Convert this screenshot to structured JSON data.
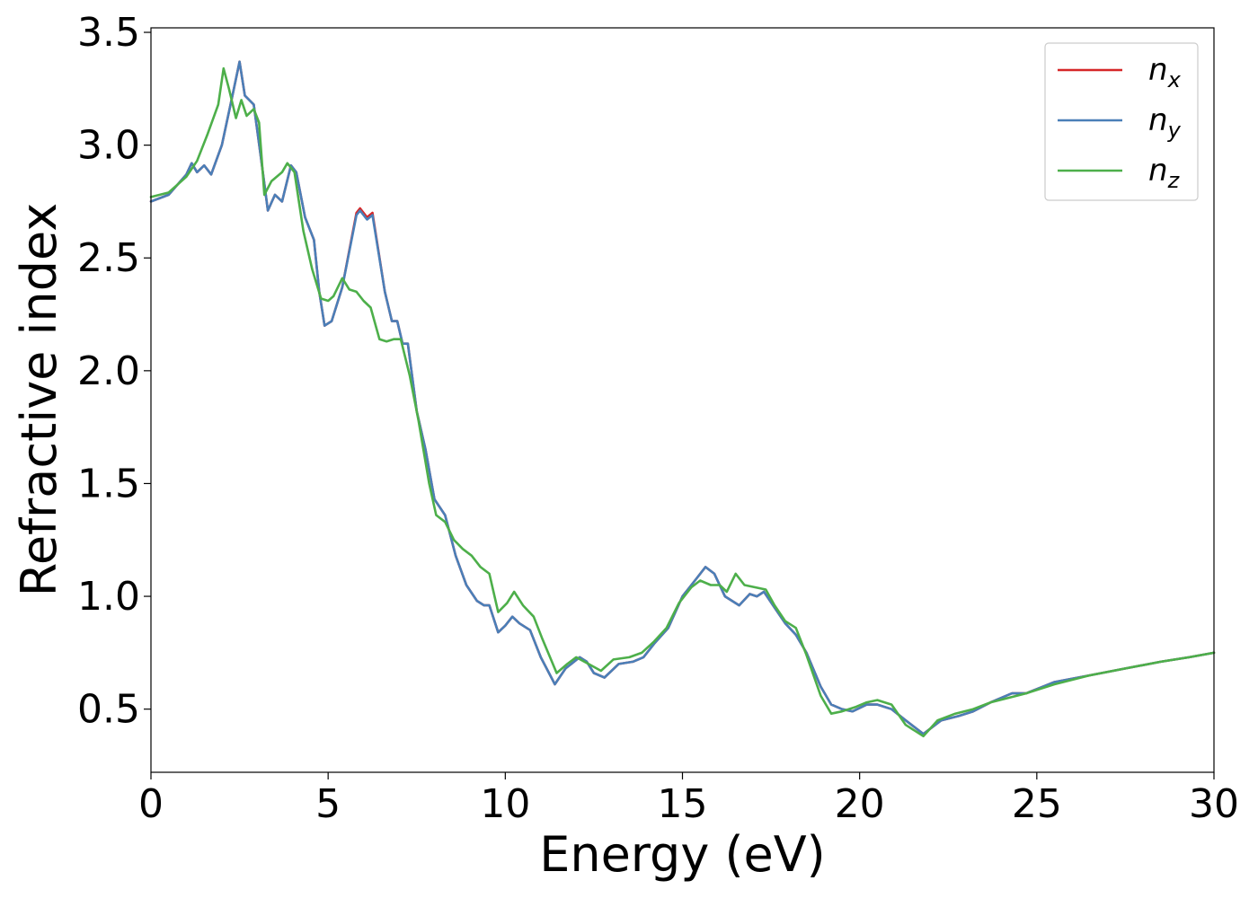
{
  "chart_data": {
    "type": "line",
    "title": "",
    "xlabel": "Energy (eV)",
    "ylabel": "Refractive index",
    "xlim": [
      0,
      30
    ],
    "ylim": [
      0.22,
      3.52
    ],
    "xticks": [
      0,
      5,
      10,
      15,
      20,
      25,
      30
    ],
    "xtick_labels": [
      "0",
      "5",
      "10",
      "15",
      "20",
      "25",
      "30"
    ],
    "yticks": [
      0.5,
      1.0,
      1.5,
      2.0,
      2.5,
      3.0,
      3.5
    ],
    "ytick_labels": [
      "0.5",
      "1.0",
      "1.5",
      "2.0",
      "2.5",
      "3.0",
      "3.5"
    ],
    "grid": false,
    "legend_position": "top-right",
    "series": [
      {
        "name": "n_x",
        "legend_base": "n",
        "legend_sub": "x",
        "color": "#d62728",
        "points": [
          [
            0,
            2.75
          ],
          [
            0.5,
            2.78
          ],
          [
            1.0,
            2.87
          ],
          [
            1.15,
            2.92
          ],
          [
            1.3,
            2.88
          ],
          [
            1.5,
            2.91
          ],
          [
            1.7,
            2.87
          ],
          [
            2.0,
            3.0
          ],
          [
            2.3,
            3.22
          ],
          [
            2.5,
            3.37
          ],
          [
            2.65,
            3.22
          ],
          [
            2.9,
            3.18
          ],
          [
            3.1,
            2.95
          ],
          [
            3.3,
            2.71
          ],
          [
            3.5,
            2.78
          ],
          [
            3.7,
            2.75
          ],
          [
            3.95,
            2.91
          ],
          [
            4.1,
            2.88
          ],
          [
            4.35,
            2.68
          ],
          [
            4.6,
            2.58
          ],
          [
            4.75,
            2.35
          ],
          [
            4.9,
            2.2
          ],
          [
            5.1,
            2.22
          ],
          [
            5.4,
            2.37
          ],
          [
            5.8,
            2.7
          ],
          [
            5.9,
            2.72
          ],
          [
            6.1,
            2.68
          ],
          [
            6.25,
            2.7
          ],
          [
            6.6,
            2.35
          ],
          [
            6.8,
            2.22
          ],
          [
            6.95,
            2.22
          ],
          [
            7.1,
            2.12
          ],
          [
            7.25,
            2.12
          ],
          [
            7.5,
            1.82
          ],
          [
            7.75,
            1.65
          ],
          [
            8.0,
            1.43
          ],
          [
            8.3,
            1.36
          ],
          [
            8.6,
            1.18
          ],
          [
            8.9,
            1.05
          ],
          [
            9.2,
            0.98
          ],
          [
            9.4,
            0.96
          ],
          [
            9.55,
            0.96
          ],
          [
            9.8,
            0.84
          ],
          [
            10.0,
            0.87
          ],
          [
            10.2,
            0.91
          ],
          [
            10.4,
            0.88
          ],
          [
            10.7,
            0.85
          ],
          [
            11.0,
            0.73
          ],
          [
            11.4,
            0.61
          ],
          [
            11.7,
            0.68
          ],
          [
            12.1,
            0.73
          ],
          [
            12.3,
            0.71
          ],
          [
            12.5,
            0.66
          ],
          [
            12.8,
            0.64
          ],
          [
            13.2,
            0.7
          ],
          [
            13.6,
            0.71
          ],
          [
            13.9,
            0.73
          ],
          [
            14.2,
            0.79
          ],
          [
            14.6,
            0.86
          ],
          [
            15.0,
            1.0
          ],
          [
            15.4,
            1.08
          ],
          [
            15.65,
            1.13
          ],
          [
            15.9,
            1.1
          ],
          [
            16.2,
            1.0
          ],
          [
            16.4,
            0.98
          ],
          [
            16.6,
            0.96
          ],
          [
            16.9,
            1.01
          ],
          [
            17.1,
            1.0
          ],
          [
            17.3,
            1.02
          ],
          [
            17.6,
            0.95
          ],
          [
            17.9,
            0.88
          ],
          [
            18.2,
            0.83
          ],
          [
            18.5,
            0.75
          ],
          [
            18.9,
            0.6
          ],
          [
            19.2,
            0.52
          ],
          [
            19.5,
            0.5
          ],
          [
            19.8,
            0.49
          ],
          [
            20.2,
            0.52
          ],
          [
            20.5,
            0.52
          ],
          [
            20.9,
            0.5
          ],
          [
            21.3,
            0.45
          ],
          [
            21.8,
            0.39
          ],
          [
            22.3,
            0.45
          ],
          [
            22.8,
            0.47
          ],
          [
            23.2,
            0.49
          ],
          [
            23.7,
            0.53
          ],
          [
            24.3,
            0.57
          ],
          [
            24.7,
            0.57
          ],
          [
            25.5,
            0.62
          ],
          [
            26.5,
            0.65
          ],
          [
            27.5,
            0.68
          ],
          [
            28.5,
            0.71
          ],
          [
            29.3,
            0.73
          ],
          [
            30.0,
            0.75
          ]
        ]
      },
      {
        "name": "n_y",
        "legend_base": "n",
        "legend_sub": "y",
        "color": "#4a7fb8",
        "points": [
          [
            0,
            2.75
          ],
          [
            0.5,
            2.78
          ],
          [
            1.0,
            2.87
          ],
          [
            1.15,
            2.92
          ],
          [
            1.3,
            2.88
          ],
          [
            1.5,
            2.91
          ],
          [
            1.7,
            2.87
          ],
          [
            2.0,
            3.0
          ],
          [
            2.3,
            3.22
          ],
          [
            2.5,
            3.37
          ],
          [
            2.65,
            3.22
          ],
          [
            2.9,
            3.18
          ],
          [
            3.1,
            2.95
          ],
          [
            3.3,
            2.71
          ],
          [
            3.5,
            2.78
          ],
          [
            3.7,
            2.75
          ],
          [
            3.95,
            2.91
          ],
          [
            4.1,
            2.88
          ],
          [
            4.35,
            2.68
          ],
          [
            4.6,
            2.58
          ],
          [
            4.75,
            2.35
          ],
          [
            4.9,
            2.2
          ],
          [
            5.1,
            2.22
          ],
          [
            5.4,
            2.37
          ],
          [
            5.8,
            2.69
          ],
          [
            5.9,
            2.71
          ],
          [
            6.1,
            2.67
          ],
          [
            6.25,
            2.69
          ],
          [
            6.6,
            2.35
          ],
          [
            6.8,
            2.22
          ],
          [
            6.95,
            2.22
          ],
          [
            7.1,
            2.12
          ],
          [
            7.25,
            2.12
          ],
          [
            7.5,
            1.82
          ],
          [
            7.75,
            1.65
          ],
          [
            8.0,
            1.43
          ],
          [
            8.3,
            1.36
          ],
          [
            8.6,
            1.18
          ],
          [
            8.9,
            1.05
          ],
          [
            9.2,
            0.98
          ],
          [
            9.4,
            0.96
          ],
          [
            9.55,
            0.96
          ],
          [
            9.8,
            0.84
          ],
          [
            10.0,
            0.87
          ],
          [
            10.2,
            0.91
          ],
          [
            10.4,
            0.88
          ],
          [
            10.7,
            0.85
          ],
          [
            11.0,
            0.73
          ],
          [
            11.4,
            0.61
          ],
          [
            11.7,
            0.68
          ],
          [
            12.1,
            0.73
          ],
          [
            12.3,
            0.71
          ],
          [
            12.5,
            0.66
          ],
          [
            12.8,
            0.64
          ],
          [
            13.2,
            0.7
          ],
          [
            13.6,
            0.71
          ],
          [
            13.9,
            0.73
          ],
          [
            14.2,
            0.79
          ],
          [
            14.6,
            0.86
          ],
          [
            15.0,
            1.0
          ],
          [
            15.4,
            1.08
          ],
          [
            15.65,
            1.13
          ],
          [
            15.9,
            1.1
          ],
          [
            16.2,
            1.0
          ],
          [
            16.4,
            0.98
          ],
          [
            16.6,
            0.96
          ],
          [
            16.9,
            1.01
          ],
          [
            17.1,
            1.0
          ],
          [
            17.3,
            1.02
          ],
          [
            17.6,
            0.95
          ],
          [
            17.9,
            0.88
          ],
          [
            18.2,
            0.83
          ],
          [
            18.5,
            0.75
          ],
          [
            18.9,
            0.6
          ],
          [
            19.2,
            0.52
          ],
          [
            19.5,
            0.5
          ],
          [
            19.8,
            0.49
          ],
          [
            20.2,
            0.52
          ],
          [
            20.5,
            0.52
          ],
          [
            20.9,
            0.5
          ],
          [
            21.3,
            0.45
          ],
          [
            21.8,
            0.39
          ],
          [
            22.3,
            0.45
          ],
          [
            22.8,
            0.47
          ],
          [
            23.2,
            0.49
          ],
          [
            23.7,
            0.53
          ],
          [
            24.3,
            0.57
          ],
          [
            24.7,
            0.57
          ],
          [
            25.5,
            0.62
          ],
          [
            26.5,
            0.65
          ],
          [
            27.5,
            0.68
          ],
          [
            28.5,
            0.71
          ],
          [
            29.3,
            0.73
          ],
          [
            30.0,
            0.75
          ]
        ]
      },
      {
        "name": "n_z",
        "legend_base": "n",
        "legend_sub": "z",
        "color": "#4daf4a",
        "points": [
          [
            0,
            2.77
          ],
          [
            0.5,
            2.79
          ],
          [
            1.0,
            2.86
          ],
          [
            1.3,
            2.93
          ],
          [
            1.6,
            3.05
          ],
          [
            1.9,
            3.18
          ],
          [
            2.05,
            3.34
          ],
          [
            2.2,
            3.25
          ],
          [
            2.4,
            3.12
          ],
          [
            2.55,
            3.2
          ],
          [
            2.7,
            3.13
          ],
          [
            2.9,
            3.16
          ],
          [
            3.05,
            3.1
          ],
          [
            3.2,
            2.78
          ],
          [
            3.4,
            2.84
          ],
          [
            3.7,
            2.88
          ],
          [
            3.85,
            2.92
          ],
          [
            4.05,
            2.88
          ],
          [
            4.3,
            2.62
          ],
          [
            4.55,
            2.45
          ],
          [
            4.8,
            2.32
          ],
          [
            5.0,
            2.31
          ],
          [
            5.15,
            2.33
          ],
          [
            5.4,
            2.41
          ],
          [
            5.6,
            2.36
          ],
          [
            5.8,
            2.35
          ],
          [
            6.0,
            2.31
          ],
          [
            6.2,
            2.28
          ],
          [
            6.45,
            2.14
          ],
          [
            6.65,
            2.13
          ],
          [
            6.85,
            2.14
          ],
          [
            7.05,
            2.14
          ],
          [
            7.3,
            1.98
          ],
          [
            7.55,
            1.78
          ],
          [
            7.85,
            1.5
          ],
          [
            8.05,
            1.36
          ],
          [
            8.3,
            1.33
          ],
          [
            8.55,
            1.25
          ],
          [
            8.8,
            1.21
          ],
          [
            9.05,
            1.18
          ],
          [
            9.3,
            1.13
          ],
          [
            9.55,
            1.1
          ],
          [
            9.8,
            0.93
          ],
          [
            10.05,
            0.97
          ],
          [
            10.25,
            1.02
          ],
          [
            10.5,
            0.96
          ],
          [
            10.8,
            0.91
          ],
          [
            11.05,
            0.81
          ],
          [
            11.45,
            0.66
          ],
          [
            11.75,
            0.7
          ],
          [
            12.0,
            0.73
          ],
          [
            12.35,
            0.7
          ],
          [
            12.7,
            0.67
          ],
          [
            13.05,
            0.72
          ],
          [
            13.5,
            0.73
          ],
          [
            13.85,
            0.75
          ],
          [
            14.2,
            0.8
          ],
          [
            14.55,
            0.86
          ],
          [
            14.9,
            0.97
          ],
          [
            15.25,
            1.04
          ],
          [
            15.5,
            1.07
          ],
          [
            15.8,
            1.05
          ],
          [
            16.05,
            1.05
          ],
          [
            16.25,
            1.02
          ],
          [
            16.5,
            1.1
          ],
          [
            16.75,
            1.05
          ],
          [
            17.05,
            1.04
          ],
          [
            17.35,
            1.03
          ],
          [
            17.6,
            0.96
          ],
          [
            17.9,
            0.89
          ],
          [
            18.2,
            0.86
          ],
          [
            18.5,
            0.74
          ],
          [
            18.9,
            0.56
          ],
          [
            19.2,
            0.48
          ],
          [
            19.5,
            0.49
          ],
          [
            19.9,
            0.51
          ],
          [
            20.2,
            0.53
          ],
          [
            20.5,
            0.54
          ],
          [
            20.9,
            0.52
          ],
          [
            21.3,
            0.43
          ],
          [
            21.8,
            0.38
          ],
          [
            22.2,
            0.45
          ],
          [
            22.7,
            0.48
          ],
          [
            23.2,
            0.5
          ],
          [
            23.7,
            0.53
          ],
          [
            24.2,
            0.55
          ],
          [
            24.7,
            0.57
          ],
          [
            25.5,
            0.61
          ],
          [
            26.5,
            0.65
          ],
          [
            27.5,
            0.68
          ],
          [
            28.5,
            0.71
          ],
          [
            29.3,
            0.73
          ],
          [
            30.0,
            0.75
          ]
        ]
      }
    ]
  }
}
